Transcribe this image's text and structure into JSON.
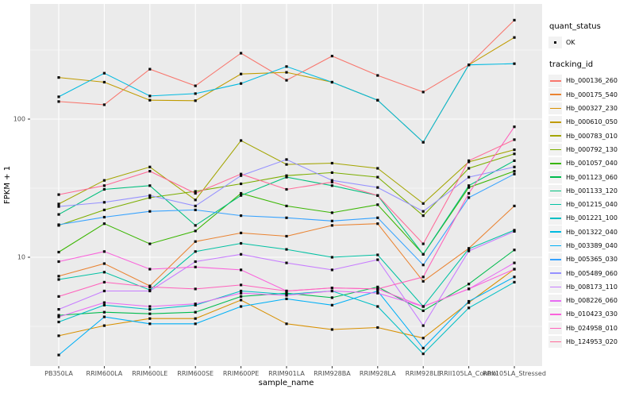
{
  "figure": {
    "background": "#FFFFFF",
    "panel_background": "#EBEBEB",
    "grid_color": "#FFFFFF",
    "axis_text_color": "#4D4D4D",
    "tick_color": "#333333",
    "marker_color": "#0A0A0A"
  },
  "axes": {
    "x_title": "sample_name",
    "y_title": "FPKM + 1"
  },
  "legend": {
    "quant_title": "quant_status",
    "quant_items": [
      {
        "label": "OK"
      }
    ],
    "tracking_title": "tracking_id"
  },
  "chart_data": {
    "type": "line",
    "title": "",
    "xlabel": "sample_name",
    "ylabel": "FPKM + 1",
    "y_scale": "log10",
    "grid": true,
    "legend_position": "right",
    "categories": [
      "PB350LA",
      "RRIM600LA",
      "RRIM600LE",
      "RRIM600SE",
      "RRIM600PE",
      "RRIM901LA",
      "RRIM928BA",
      "RRIM928LA",
      "RRIM928LE",
      "RRII105LA_Control",
      "RRII105LA_Stressed"
    ],
    "y_major_ticks": [
      {
        "value": 100,
        "label": "100"
      },
      {
        "value": 10,
        "label": "10"
      }
    ],
    "y_minor_ticks": [
      316.2,
      31.62,
      3.162
    ],
    "ylim": [
      1.6,
      680
    ],
    "quant_status_all": "OK",
    "series": [
      {
        "tracking_id": "Hb_000136_260",
        "color": "#F8766D",
        "values": [
          134,
          127,
          230,
          174,
          300,
          191,
          286,
          207,
          157,
          247,
          520
        ]
      },
      {
        "tracking_id": "Hb_000175_540",
        "color": "#EA8331",
        "values": [
          7.3,
          9,
          6.2,
          13,
          15,
          14.2,
          17,
          17.5,
          6.7,
          11.6,
          23.5
        ]
      },
      {
        "tracking_id": "Hb_000327_230",
        "color": "#D89000",
        "values": [
          2.7,
          3.2,
          3.6,
          3.6,
          4.9,
          3.3,
          3.0,
          3.1,
          2.6,
          4.7,
          8.2
        ]
      },
      {
        "tracking_id": "Hb_000610_050",
        "color": "#C09B00",
        "values": [
          200,
          185,
          137,
          136,
          212,
          218,
          185,
          137,
          68,
          247,
          390
        ]
      },
      {
        "tracking_id": "Hb_000783_010",
        "color": "#A3A500",
        "values": [
          24.3,
          36,
          45,
          26,
          70,
          47,
          48,
          44,
          24.5,
          49,
          60
        ]
      },
      {
        "tracking_id": "Hb_000792_130",
        "color": "#7CAE00",
        "values": [
          17,
          22,
          27,
          30,
          34,
          39,
          41,
          38,
          20,
          44,
          56
        ]
      },
      {
        "tracking_id": "Hb_001057_040",
        "color": "#39B600",
        "values": [
          10.9,
          17.5,
          12.5,
          15.5,
          29,
          23.5,
          21,
          24,
          10.5,
          32,
          42
        ]
      },
      {
        "tracking_id": "Hb_001123_060",
        "color": "#00BB4E",
        "values": [
          3.8,
          4.0,
          3.9,
          4.0,
          5.2,
          5.5,
          5.1,
          6.1,
          4.1,
          6.4,
          11.3
        ]
      },
      {
        "tracking_id": "Hb_001133_120",
        "color": "#00BF7D",
        "values": [
          20.4,
          31,
          33,
          17,
          28,
          38,
          33,
          28,
          10.5,
          33,
          50
        ]
      },
      {
        "tracking_id": "Hb_001215_040",
        "color": "#00C1A3",
        "values": [
          6.9,
          7.8,
          5.8,
          11,
          12.6,
          11.4,
          10,
          10.4,
          4.4,
          11.5,
          15.7
        ]
      },
      {
        "tracking_id": "Hb_001221_100",
        "color": "#00BFC4",
        "values": [
          3.4,
          4.5,
          4.2,
          4.5,
          5.7,
          5.4,
          5.7,
          4.4,
          2.0,
          4.3,
          6.6
        ]
      },
      {
        "tracking_id": "Hb_001322_040",
        "color": "#00BAE0",
        "values": [
          145,
          215,
          147,
          153,
          181,
          240,
          185,
          137,
          68,
          247,
          252
        ]
      },
      {
        "tracking_id": "Hb_003389_040",
        "color": "#00B0F6",
        "values": [
          1.96,
          3.7,
          3.3,
          3.3,
          4.4,
          5.0,
          4.5,
          5.7,
          2.2,
          4.8,
          7.2
        ]
      },
      {
        "tracking_id": "Hb_005365_030",
        "color": "#35A2FF",
        "values": [
          17.2,
          19.5,
          21.5,
          22,
          20,
          19.3,
          18.3,
          19.3,
          8.8,
          27,
          40
        ]
      },
      {
        "tracking_id": "Hb_005489_060",
        "color": "#9590FF",
        "values": [
          23.3,
          25,
          28,
          23.5,
          39,
          51,
          36,
          32,
          21.5,
          38,
          45
        ]
      },
      {
        "tracking_id": "Hb_008173_110",
        "color": "#C77CFF",
        "values": [
          4.2,
          5.7,
          5.7,
          9.3,
          10.5,
          9.1,
          8.1,
          9.6,
          3.2,
          11.1,
          15.4
        ]
      },
      {
        "tracking_id": "Hb_008226_060",
        "color": "#E76BF3",
        "values": [
          3.7,
          4.7,
          4.4,
          4.6,
          5.5,
          5.3,
          5.7,
          5.5,
          4.4,
          5.9,
          9.1
        ]
      },
      {
        "tracking_id": "Hb_010423_030",
        "color": "#FA62DB",
        "values": [
          9.3,
          11,
          8.2,
          8.5,
          8.1,
          5.7,
          6.0,
          5.9,
          4.4,
          5.9,
          8.2
        ]
      },
      {
        "tracking_id": "Hb_024958_010",
        "color": "#FF62BC",
        "values": [
          5.2,
          6.6,
          6.1,
          5.9,
          6.3,
          5.7,
          6.0,
          5.9,
          7.2,
          29,
          88
        ]
      },
      {
        "tracking_id": "Hb_124953_020",
        "color": "#FF6A98",
        "values": [
          28.4,
          33,
          42,
          29,
          40,
          31,
          35,
          28,
          12.5,
          50,
          71
        ]
      }
    ]
  }
}
